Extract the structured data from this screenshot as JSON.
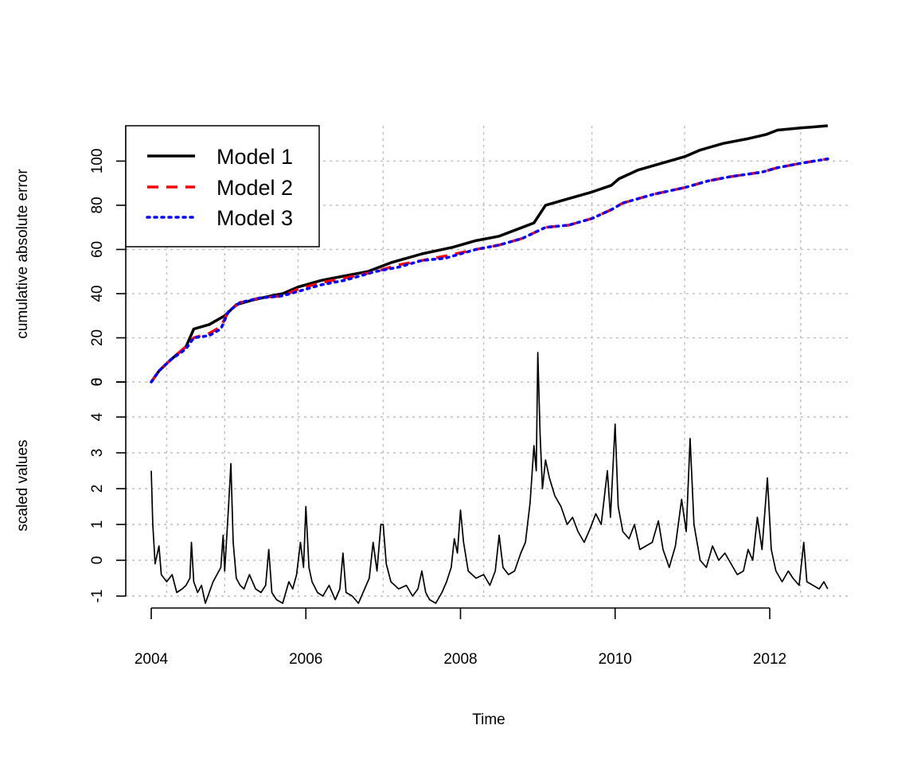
{
  "chart_data": [
    {
      "type": "line",
      "panel": "top",
      "ylabel": "cumulative absolute error",
      "ylim": [
        0,
        115
      ],
      "y_ticks": [
        "0",
        "20",
        "40",
        "60",
        "80",
        "100"
      ],
      "grid": true,
      "legend_position": "top-left",
      "series": [
        {
          "name": "Model 1",
          "color": "#000000",
          "line_style": "solid",
          "points": [
            [
              2004.0,
              0
            ],
            [
              2004.1,
              5
            ],
            [
              2004.25,
              10
            ],
            [
              2004.45,
              16
            ],
            [
              2004.55,
              24
            ],
            [
              2004.75,
              26
            ],
            [
              2004.95,
              30
            ],
            [
              2005.1,
              35
            ],
            [
              2005.3,
              37
            ],
            [
              2005.55,
              39
            ],
            [
              2005.7,
              40
            ],
            [
              2005.9,
              43
            ],
            [
              2006.2,
              46
            ],
            [
              2006.5,
              48
            ],
            [
              2006.8,
              50
            ],
            [
              2007.1,
              54
            ],
            [
              2007.5,
              58
            ],
            [
              2007.9,
              61
            ],
            [
              2008.2,
              64
            ],
            [
              2008.5,
              66
            ],
            [
              2008.8,
              70
            ],
            [
              2008.95,
              72
            ],
            [
              2009.1,
              80
            ],
            [
              2009.4,
              83
            ],
            [
              2009.7,
              86
            ],
            [
              2009.95,
              89
            ],
            [
              2010.05,
              92
            ],
            [
              2010.3,
              96
            ],
            [
              2010.6,
              99
            ],
            [
              2010.9,
              102
            ],
            [
              2011.1,
              105
            ],
            [
              2011.4,
              108
            ],
            [
              2011.7,
              110
            ],
            [
              2011.95,
              112
            ],
            [
              2012.1,
              114
            ],
            [
              2012.4,
              115
            ],
            [
              2012.75,
              116
            ]
          ]
        },
        {
          "name": "Model 2",
          "color": "#ff0000",
          "line_style": "dashed",
          "points": [
            [
              2004.0,
              0
            ],
            [
              2004.1,
              5
            ],
            [
              2004.25,
              10
            ],
            [
              2004.45,
              16
            ],
            [
              2004.55,
              20
            ],
            [
              2004.75,
              22
            ],
            [
              2004.9,
              25
            ],
            [
              2005.0,
              32
            ],
            [
              2005.15,
              36
            ],
            [
              2005.4,
              38
            ],
            [
              2005.7,
              39
            ],
            [
              2005.9,
              42
            ],
            [
              2006.2,
              45
            ],
            [
              2006.5,
              47
            ],
            [
              2006.9,
              50
            ],
            [
              2007.2,
              53
            ],
            [
              2007.5,
              55
            ],
            [
              2007.8,
              57
            ],
            [
              2008.2,
              60
            ],
            [
              2008.5,
              62
            ],
            [
              2008.8,
              65
            ],
            [
              2009.1,
              70
            ],
            [
              2009.4,
              71
            ],
            [
              2009.7,
              74
            ],
            [
              2009.95,
              78
            ],
            [
              2010.1,
              81
            ],
            [
              2010.5,
              85
            ],
            [
              2010.9,
              88
            ],
            [
              2011.2,
              91
            ],
            [
              2011.5,
              93
            ],
            [
              2011.9,
              95
            ],
            [
              2012.1,
              97
            ],
            [
              2012.4,
              99
            ],
            [
              2012.75,
              101
            ]
          ]
        },
        {
          "name": "Model 3",
          "color": "#0000ff",
          "line_style": "dotted",
          "points": [
            [
              2004.0,
              0
            ],
            [
              2004.1,
              5
            ],
            [
              2004.25,
              10
            ],
            [
              2004.45,
              15
            ],
            [
              2004.55,
              20
            ],
            [
              2004.75,
              21
            ],
            [
              2004.9,
              24
            ],
            [
              2005.0,
              32
            ],
            [
              2005.15,
              36
            ],
            [
              2005.4,
              38
            ],
            [
              2005.7,
              39
            ],
            [
              2005.9,
              41
            ],
            [
              2006.2,
              44
            ],
            [
              2006.5,
              46
            ],
            [
              2006.9,
              50
            ],
            [
              2007.2,
              52
            ],
            [
              2007.5,
              55
            ],
            [
              2007.8,
              56
            ],
            [
              2008.2,
              60
            ],
            [
              2008.5,
              62
            ],
            [
              2008.8,
              65
            ],
            [
              2009.1,
              70
            ],
            [
              2009.4,
              71
            ],
            [
              2009.7,
              74
            ],
            [
              2009.95,
              78
            ],
            [
              2010.1,
              81
            ],
            [
              2010.5,
              85
            ],
            [
              2010.9,
              88
            ],
            [
              2011.2,
              91
            ],
            [
              2011.5,
              93
            ],
            [
              2011.9,
              95
            ],
            [
              2012.1,
              97
            ],
            [
              2012.4,
              99
            ],
            [
              2012.75,
              101
            ]
          ]
        }
      ]
    },
    {
      "type": "line",
      "panel": "bottom",
      "ylabel": "scaled values",
      "xlabel": "Time",
      "ylim": [
        -1,
        6
      ],
      "y_ticks": [
        "-1",
        "0",
        "1",
        "2",
        "3",
        "4",
        "6"
      ],
      "x_ticks": [
        "2004",
        "2006",
        "2008",
        "2010",
        "2012"
      ],
      "xlim": [
        2004,
        2012.75
      ],
      "grid": true,
      "series": [
        {
          "color": "#000000",
          "line_style": "solid",
          "points": [
            [
              2004.0,
              2.5
            ],
            [
              2004.02,
              1.0
            ],
            [
              2004.05,
              -0.1
            ],
            [
              2004.1,
              0.4
            ],
            [
              2004.13,
              -0.4
            ],
            [
              2004.2,
              -0.6
            ],
            [
              2004.27,
              -0.4
            ],
            [
              2004.33,
              -0.9
            ],
            [
              2004.4,
              -0.8
            ],
            [
              2004.45,
              -0.7
            ],
            [
              2004.5,
              -0.5
            ],
            [
              2004.52,
              0.5
            ],
            [
              2004.55,
              -0.6
            ],
            [
              2004.6,
              -0.9
            ],
            [
              2004.65,
              -0.7
            ],
            [
              2004.7,
              -1.2
            ],
            [
              2004.75,
              -0.9
            ],
            [
              2004.8,
              -0.6
            ],
            [
              2004.85,
              -0.4
            ],
            [
              2004.9,
              -0.2
            ],
            [
              2004.93,
              0.7
            ],
            [
              2004.95,
              -0.3
            ],
            [
              2005.0,
              1.5
            ],
            [
              2005.03,
              2.7
            ],
            [
              2005.06,
              0.5
            ],
            [
              2005.1,
              -0.5
            ],
            [
              2005.15,
              -0.7
            ],
            [
              2005.2,
              -0.8
            ],
            [
              2005.27,
              -0.4
            ],
            [
              2005.35,
              -0.8
            ],
            [
              2005.42,
              -0.9
            ],
            [
              2005.48,
              -0.7
            ],
            [
              2005.52,
              0.3
            ],
            [
              2005.56,
              -0.9
            ],
            [
              2005.62,
              -1.1
            ],
            [
              2005.7,
              -1.2
            ],
            [
              2005.78,
              -0.6
            ],
            [
              2005.83,
              -0.8
            ],
            [
              2005.88,
              -0.4
            ],
            [
              2005.93,
              0.5
            ],
            [
              2005.97,
              -0.2
            ],
            [
              2006.0,
              1.5
            ],
            [
              2006.04,
              -0.2
            ],
            [
              2006.08,
              -0.6
            ],
            [
              2006.15,
              -0.9
            ],
            [
              2006.22,
              -1.0
            ],
            [
              2006.3,
              -0.7
            ],
            [
              2006.38,
              -1.1
            ],
            [
              2006.44,
              -0.8
            ],
            [
              2006.48,
              0.2
            ],
            [
              2006.52,
              -0.9
            ],
            [
              2006.6,
              -1.0
            ],
            [
              2006.68,
              -1.2
            ],
            [
              2006.76,
              -0.8
            ],
            [
              2006.82,
              -0.5
            ],
            [
              2006.87,
              0.5
            ],
            [
              2006.92,
              -0.3
            ],
            [
              2006.97,
              1.0
            ],
            [
              2007.0,
              1.0
            ],
            [
              2007.04,
              -0.1
            ],
            [
              2007.1,
              -0.6
            ],
            [
              2007.2,
              -0.8
            ],
            [
              2007.3,
              -0.7
            ],
            [
              2007.38,
              -1.0
            ],
            [
              2007.45,
              -0.8
            ],
            [
              2007.5,
              -0.3
            ],
            [
              2007.55,
              -0.9
            ],
            [
              2007.6,
              -1.1
            ],
            [
              2007.68,
              -1.2
            ],
            [
              2007.76,
              -0.9
            ],
            [
              2007.82,
              -0.6
            ],
            [
              2007.88,
              -0.2
            ],
            [
              2007.92,
              0.6
            ],
            [
              2007.96,
              0.2
            ],
            [
              2008.0,
              1.4
            ],
            [
              2008.04,
              0.5
            ],
            [
              2008.1,
              -0.3
            ],
            [
              2008.2,
              -0.5
            ],
            [
              2008.3,
              -0.4
            ],
            [
              2008.38,
              -0.7
            ],
            [
              2008.45,
              -0.3
            ],
            [
              2008.5,
              0.7
            ],
            [
              2008.55,
              -0.2
            ],
            [
              2008.62,
              -0.4
            ],
            [
              2008.7,
              -0.3
            ],
            [
              2008.78,
              0.2
            ],
            [
              2008.84,
              0.5
            ],
            [
              2008.9,
              1.6
            ],
            [
              2008.95,
              3.2
            ],
            [
              2008.98,
              2.5
            ],
            [
              2009.0,
              5.8
            ],
            [
              2009.03,
              3.5
            ],
            [
              2009.06,
              2.0
            ],
            [
              2009.1,
              2.8
            ],
            [
              2009.15,
              2.3
            ],
            [
              2009.22,
              1.8
            ],
            [
              2009.3,
              1.5
            ],
            [
              2009.38,
              1.0
            ],
            [
              2009.45,
              1.2
            ],
            [
              2009.52,
              0.8
            ],
            [
              2009.6,
              0.5
            ],
            [
              2009.68,
              0.9
            ],
            [
              2009.75,
              1.3
            ],
            [
              2009.82,
              1.0
            ],
            [
              2009.9,
              2.5
            ],
            [
              2009.94,
              1.2
            ],
            [
              2010.0,
              3.8
            ],
            [
              2010.04,
              1.5
            ],
            [
              2010.1,
              0.8
            ],
            [
              2010.18,
              0.6
            ],
            [
              2010.25,
              1.0
            ],
            [
              2010.32,
              0.3
            ],
            [
              2010.4,
              0.4
            ],
            [
              2010.48,
              0.5
            ],
            [
              2010.56,
              1.1
            ],
            [
              2010.62,
              0.3
            ],
            [
              2010.7,
              -0.2
            ],
            [
              2010.78,
              0.4
            ],
            [
              2010.86,
              1.7
            ],
            [
              2010.92,
              0.8
            ],
            [
              2010.97,
              3.4
            ],
            [
              2011.02,
              1.0
            ],
            [
              2011.1,
              0.0
            ],
            [
              2011.18,
              -0.2
            ],
            [
              2011.26,
              0.4
            ],
            [
              2011.34,
              0.0
            ],
            [
              2011.42,
              0.2
            ],
            [
              2011.5,
              -0.1
            ],
            [
              2011.58,
              -0.4
            ],
            [
              2011.66,
              -0.3
            ],
            [
              2011.72,
              0.3
            ],
            [
              2011.78,
              0.0
            ],
            [
              2011.84,
              1.2
            ],
            [
              2011.9,
              0.3
            ],
            [
              2011.97,
              2.3
            ],
            [
              2012.02,
              0.3
            ],
            [
              2012.08,
              -0.3
            ],
            [
              2012.16,
              -0.6
            ],
            [
              2012.24,
              -0.3
            ],
            [
              2012.3,
              -0.5
            ],
            [
              2012.38,
              -0.7
            ],
            [
              2012.44,
              0.5
            ],
            [
              2012.48,
              -0.6
            ],
            [
              2012.56,
              -0.7
            ],
            [
              2012.64,
              -0.8
            ],
            [
              2012.7,
              -0.6
            ],
            [
              2012.75,
              -0.8
            ]
          ]
        }
      ]
    }
  ]
}
